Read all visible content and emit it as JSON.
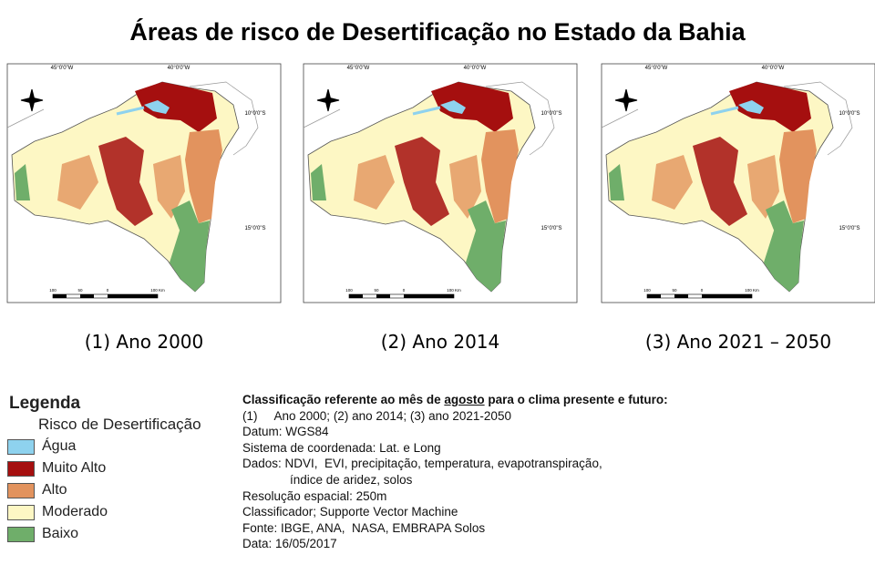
{
  "title": "Áreas de risco de Desertificação no Estado da Bahia",
  "maps": [
    {
      "caption": "(1) Ano 2000",
      "lon_labels": [
        "45°0'0\"W",
        "40°0'0\"W"
      ],
      "lat_labels": [
        "10°0'0\"S",
        "15°0'0\"S"
      ],
      "scale_labels": [
        "100",
        "50",
        "0",
        "100 Km"
      ]
    },
    {
      "caption": "(2) Ano 2014",
      "lon_labels": [
        "45°0'0\"W",
        "40°0'0\"W"
      ],
      "lat_labels": [
        "10°0'0\"S",
        "15°0'0\"S"
      ],
      "scale_labels": [
        "100",
        "50",
        "0",
        "100 Km"
      ]
    },
    {
      "caption": "(3) Ano 2021 – 2050",
      "lon_labels": [
        "45°0'0\"W",
        "40°0'0\"W"
      ],
      "lat_labels": [
        "10°0'0\"S",
        "15°0'0\"S"
      ],
      "scale_labels": [
        "100",
        "50",
        "0",
        "100 Km"
      ]
    }
  ],
  "legend": {
    "title": "Legenda",
    "subtitle": "Risco de Desertificação",
    "items": [
      {
        "label": "Água",
        "color": "#8ed2ee"
      },
      {
        "label": "Muito Alto",
        "color": "#a50f0f"
      },
      {
        "label": "Alto",
        "color": "#e2935e"
      },
      {
        "label": "Moderado",
        "color": "#fdf7c4"
      },
      {
        "label": "Baixo",
        "color": "#6fae6a"
      }
    ]
  },
  "notes": {
    "heading_before": "Classificação referente ao mês de ",
    "heading_emphasis": "agosto",
    "heading_after": " para o clima presente e futuro:",
    "lines": [
      "(1)     Ano 2000; (2) ano 2014; (3) ano 2021-2050",
      "Datum: WGS84",
      "Sistema de coordenada: Lat. e Long",
      "Dados: NDVI,  EVI, precipitação, temperatura, evapotranspiração,",
      "índice de aridez, solos",
      "Resolução espacial: 250m",
      "Classificador; Supporte Vector Machine",
      "Fonte: IBGE, ANA,  NASA, EMBRAPA Solos",
      "Data: 16/05/2017"
    ]
  }
}
